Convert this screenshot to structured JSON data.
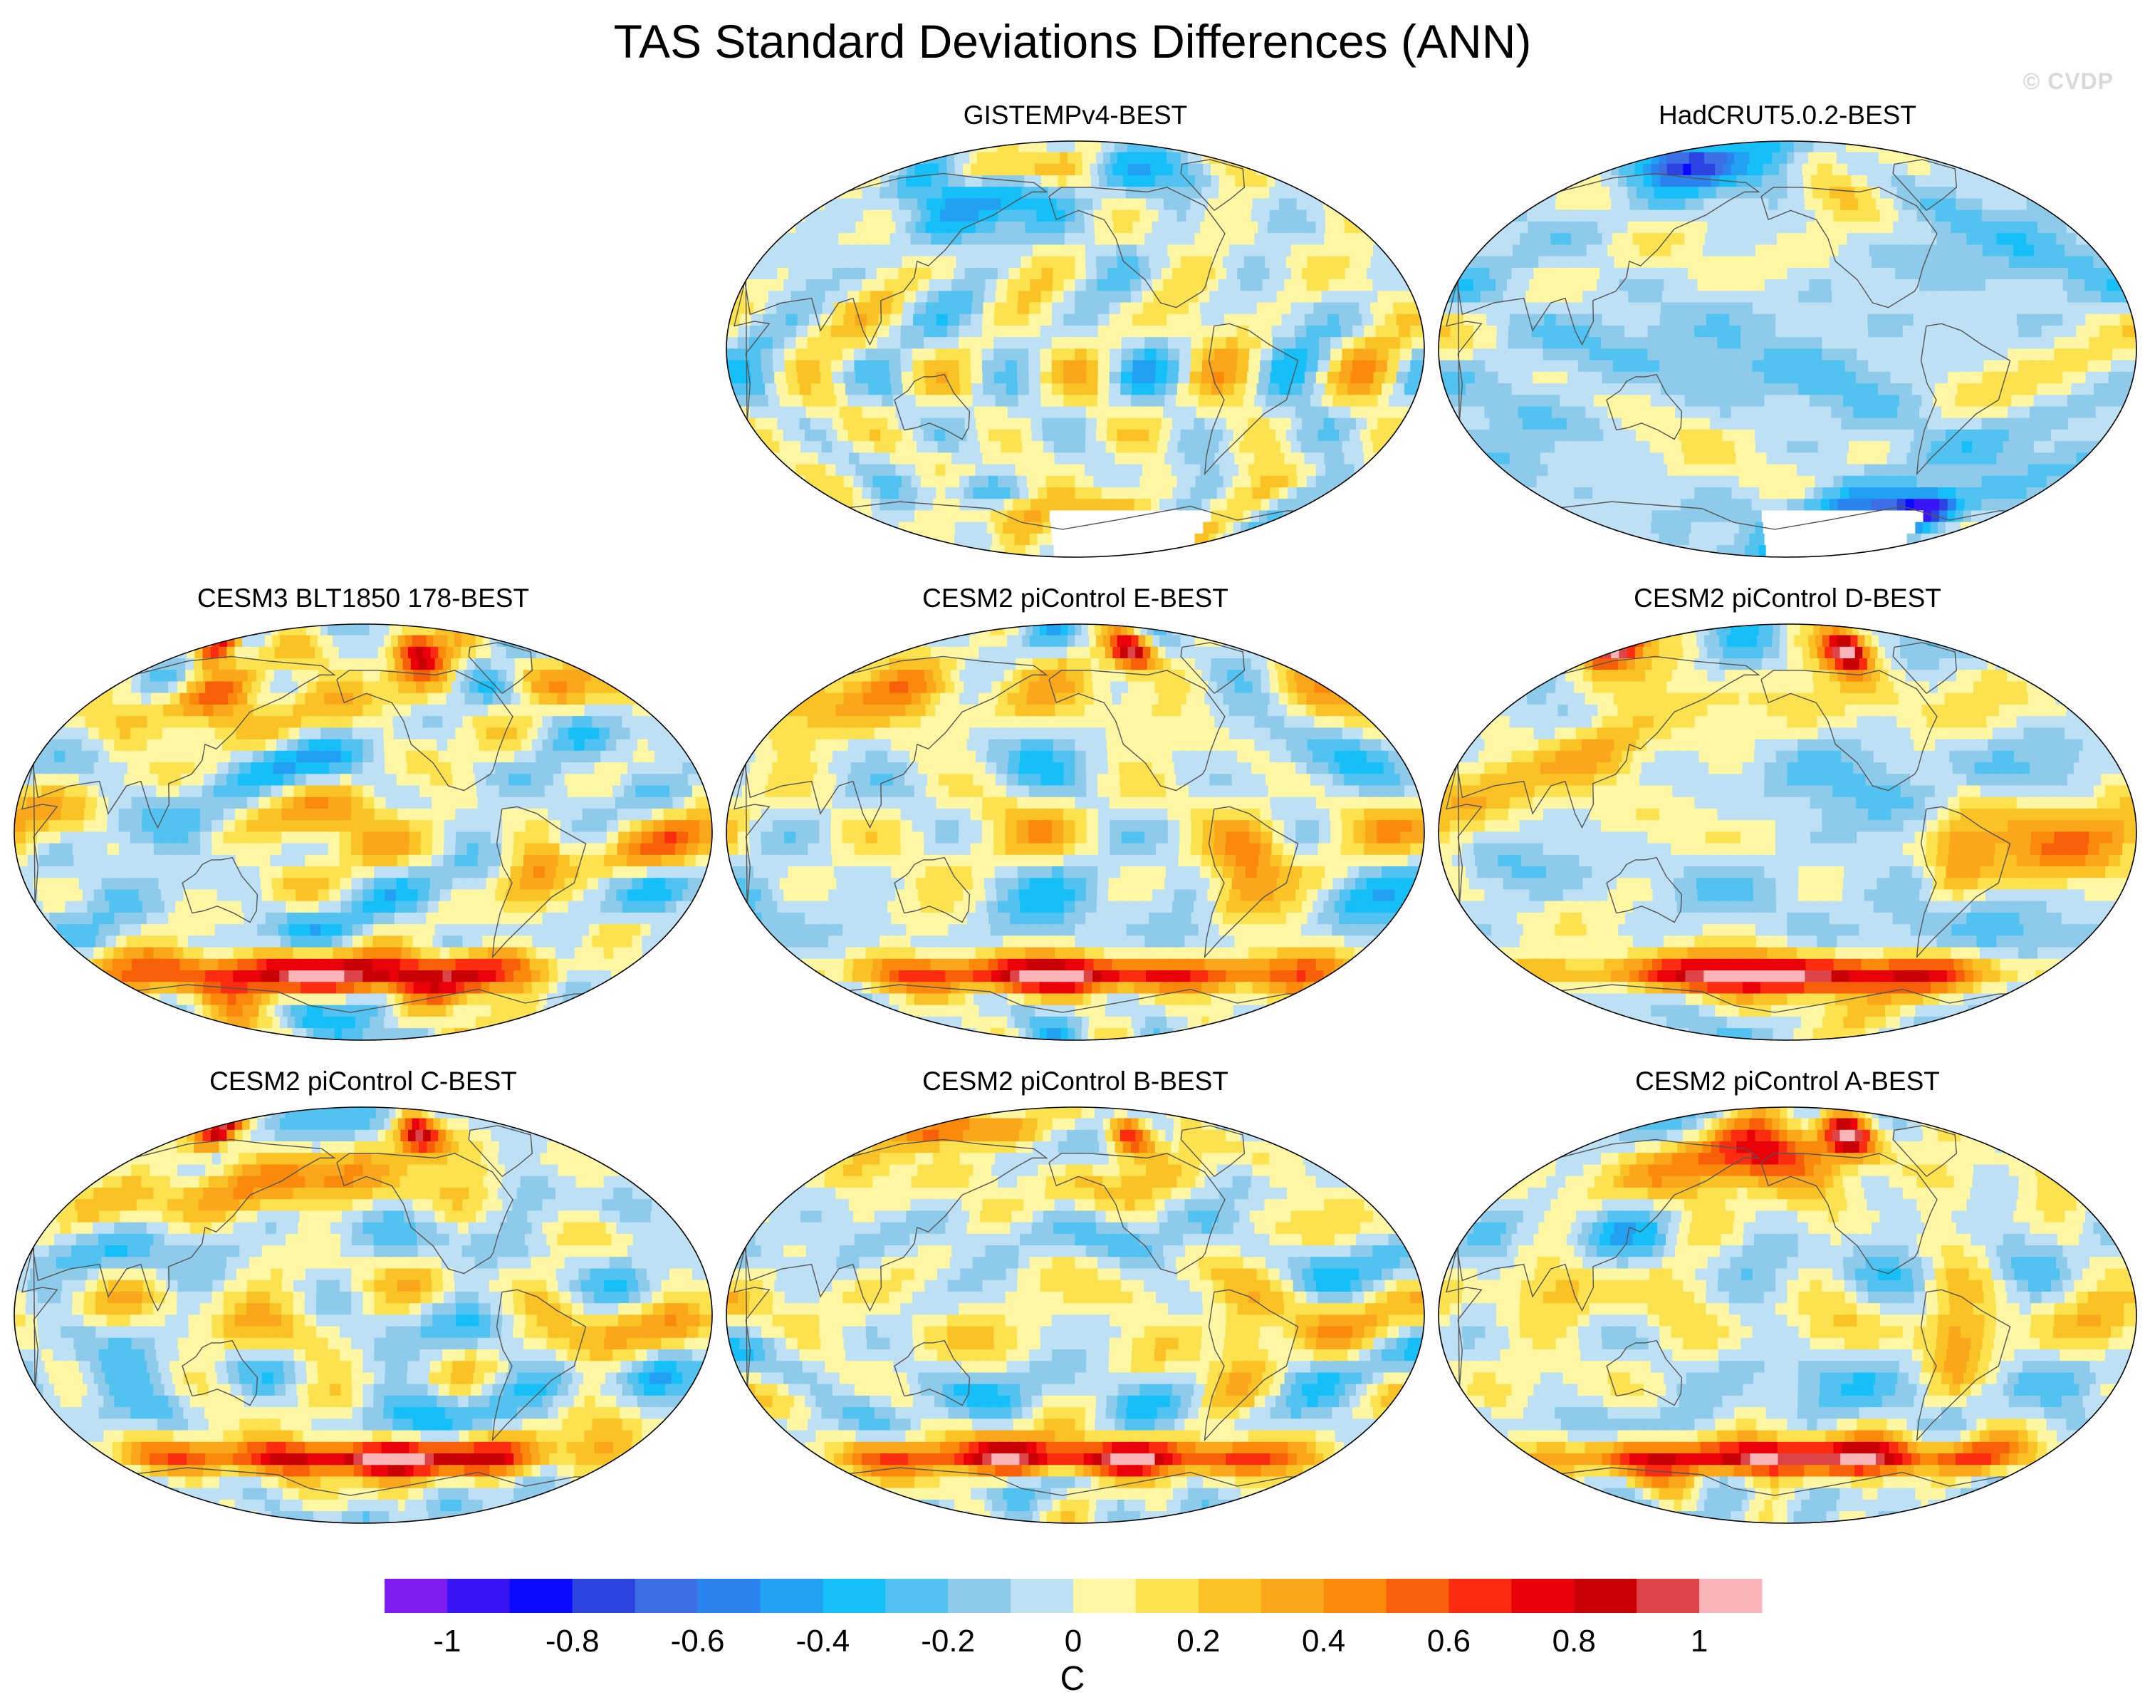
{
  "figure": {
    "title": "TAS Standard Deviations Differences (ANN)",
    "watermark": "© CVDP"
  },
  "chart_data": {
    "type": "heatmap",
    "title": "TAS Standard Deviations Differences (ANN)",
    "projection": "Robinson (Pacific-centered)",
    "units": "C",
    "panels": [
      {
        "id": "gistemp",
        "title": "GISTEMPv4-BEST",
        "pattern": "obs",
        "intensity": 0.35,
        "seed": 3,
        "features": [
          {
            "lon": 150,
            "lat": 65,
            "w": 40,
            "h": 12,
            "v": -0.45
          },
          {
            "lon": 180,
            "lat": 78,
            "w": 30,
            "h": 6,
            "v": 0.45
          },
          {
            "lon": 265,
            "lat": 78,
            "w": 25,
            "h": 8,
            "v": -0.4
          },
          {
            "lon": 200,
            "lat": -72,
            "w": 35,
            "h": 8,
            "v": 0.4
          },
          {
            "lon": 150,
            "lat": -62,
            "w": 20,
            "h": 5,
            "v": -0.35
          }
        ],
        "missing_south": -70
      },
      {
        "id": "hadcrut",
        "title": "HadCRUT5.0.2-BEST",
        "pattern": "obs_cool",
        "intensity": 0.25,
        "seed": 11,
        "features": [
          {
            "lon": 130,
            "lat": 80,
            "w": 25,
            "h": 6,
            "v": -0.6
          },
          {
            "lon": 310,
            "lat": -70,
            "w": 15,
            "h": 5,
            "v": -0.85
          },
          {
            "lon": 260,
            "lat": -72,
            "w": 40,
            "h": 8,
            "v": -0.45
          },
          {
            "lon": 240,
            "lat": 72,
            "w": 25,
            "h": 10,
            "v": 0.3
          },
          {
            "lon": 210,
            "lat": 75,
            "w": 20,
            "h": 8,
            "v": -0.3
          }
        ],
        "missing_south": -72
      },
      {
        "id": "cesm3",
        "title": "CESM3 BLT1850 178-BEST",
        "pattern": "model",
        "intensity": 0.4,
        "seed": 21,
        "features": [
          {
            "lon": 200,
            "lat": -62,
            "w": 90,
            "h": 6,
            "v": 0.9
          },
          {
            "lon": 255,
            "lat": 78,
            "w": 15,
            "h": 8,
            "v": 1.0
          },
          {
            "lon": 100,
            "lat": 80,
            "w": 10,
            "h": 6,
            "v": 0.9
          },
          {
            "lon": 120,
            "lat": 55,
            "w": 20,
            "h": 10,
            "v": 0.5
          },
          {
            "lon": 300,
            "lat": -15,
            "w": 12,
            "h": 15,
            "v": 0.45
          }
        ]
      },
      {
        "id": "cesm2e",
        "title": "CESM2 piControl E-BEST",
        "pattern": "model",
        "intensity": 0.35,
        "seed": 31,
        "features": [
          {
            "lon": 210,
            "lat": -62,
            "w": 100,
            "h": 5,
            "v": 0.85
          },
          {
            "lon": 255,
            "lat": 78,
            "w": 12,
            "h": 6,
            "v": 0.9
          },
          {
            "lon": 95,
            "lat": 60,
            "w": 30,
            "h": 12,
            "v": 0.45
          },
          {
            "lon": 300,
            "lat": -15,
            "w": 12,
            "h": 15,
            "v": 0.4
          }
        ]
      },
      {
        "id": "cesm2d",
        "title": "CESM2 piControl D-BEST",
        "pattern": "model",
        "intensity": 0.35,
        "seed": 41,
        "features": [
          {
            "lon": 210,
            "lat": -62,
            "w": 100,
            "h": 5,
            "v": 0.85
          },
          {
            "lon": 258,
            "lat": 78,
            "w": 12,
            "h": 6,
            "v": 1.0
          },
          {
            "lon": 80,
            "lat": 80,
            "w": 12,
            "h": 6,
            "v": 1.0
          },
          {
            "lon": 110,
            "lat": 35,
            "w": 20,
            "h": 10,
            "v": 0.45
          },
          {
            "lon": 300,
            "lat": -15,
            "w": 12,
            "h": 15,
            "v": 0.4
          }
        ]
      },
      {
        "id": "cesm2c",
        "title": "CESM2 piControl C-BEST",
        "pattern": "model",
        "intensity": 0.35,
        "seed": 51,
        "features": [
          {
            "lon": 210,
            "lat": -62,
            "w": 90,
            "h": 5,
            "v": 0.9
          },
          {
            "lon": 255,
            "lat": 78,
            "w": 12,
            "h": 6,
            "v": 0.85
          },
          {
            "lon": 100,
            "lat": 80,
            "w": 10,
            "h": 6,
            "v": 0.85
          },
          {
            "lon": 160,
            "lat": 55,
            "w": 30,
            "h": 10,
            "v": 0.45
          }
        ]
      },
      {
        "id": "cesm2b",
        "title": "CESM2 piControl B-BEST",
        "pattern": "model",
        "intensity": 0.35,
        "seed": 61,
        "features": [
          {
            "lon": 215,
            "lat": -62,
            "w": 100,
            "h": 5,
            "v": 0.85
          },
          {
            "lon": 255,
            "lat": 78,
            "w": 12,
            "h": 6,
            "v": 0.85
          },
          {
            "lon": 110,
            "lat": 80,
            "w": 40,
            "h": 5,
            "v": 0.6
          },
          {
            "lon": 300,
            "lat": -15,
            "w": 12,
            "h": 15,
            "v": 0.4
          }
        ]
      },
      {
        "id": "cesm2a",
        "title": "CESM2 piControl A-BEST",
        "pattern": "model",
        "intensity": 0.35,
        "seed": 71,
        "features": [
          {
            "lon": 210,
            "lat": -62,
            "w": 100,
            "h": 5,
            "v": 0.9
          },
          {
            "lon": 258,
            "lat": 78,
            "w": 12,
            "h": 6,
            "v": 0.9
          },
          {
            "lon": 185,
            "lat": 70,
            "w": 35,
            "h": 10,
            "v": 0.75
          },
          {
            "lon": 300,
            "lat": -15,
            "w": 12,
            "h": 15,
            "v": 0.4
          }
        ]
      }
    ],
    "colorbar": {
      "levels": [
        -1.1,
        -1.0,
        -0.9,
        -0.8,
        -0.7,
        -0.6,
        -0.5,
        -0.4,
        -0.3,
        -0.2,
        -0.1,
        0,
        0.1,
        0.2,
        0.3,
        0.4,
        0.5,
        0.6,
        0.7,
        0.8,
        0.9,
        1.0,
        1.1
      ],
      "colors": [
        "#7f1cf0",
        "#3914f5",
        "#0a0aff",
        "#2b44e0",
        "#3c6fe6",
        "#2a84f0",
        "#22a0f2",
        "#16bff8",
        "#52c2f0",
        "#8ecbeb",
        "#bde0f5",
        "#fdf7a4",
        "#fde24f",
        "#fbc226",
        "#fba71b",
        "#fb8a0c",
        "#f75f09",
        "#fb2c0f",
        "#ea0008",
        "#c80005",
        "#dc4448",
        "#fbb4b8"
      ],
      "tick_labels": [
        "-1",
        "-0.8",
        "-0.6",
        "-0.4",
        "-0.2",
        "0",
        "0.2",
        "0.4",
        "0.6",
        "0.8",
        "1"
      ],
      "tick_values": [
        -1,
        -0.8,
        -0.6,
        -0.4,
        -0.2,
        0,
        0.2,
        0.4,
        0.6,
        0.8,
        1
      ],
      "label": "C"
    }
  }
}
